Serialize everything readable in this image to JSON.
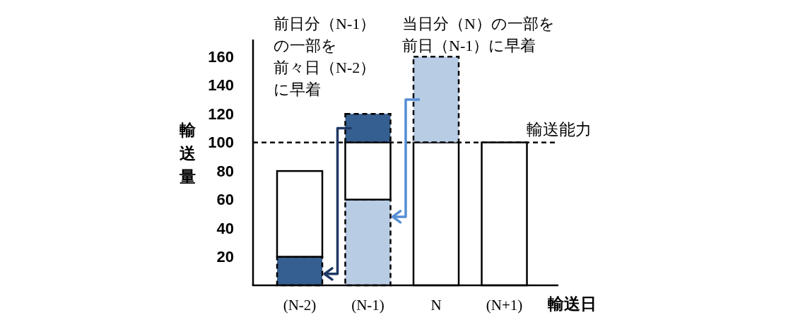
{
  "chart_data": {
    "type": "bar",
    "stacked": true,
    "categories": [
      "(N-2)",
      "(N-1)",
      "N",
      "(N+1)"
    ],
    "series": [
      {
        "colors": [
          "#365f91",
          "#b8cce4",
          null,
          null
        ],
        "values": [
          20,
          60,
          null,
          null
        ],
        "line_style": "dashed"
      },
      {
        "color": "#ffffff",
        "values": [
          60,
          40,
          100,
          100
        ]
      },
      {
        "colors": [
          null,
          "#365f91",
          "#b8cce4",
          null
        ],
        "values": [
          null,
          20,
          60,
          null
        ],
        "line_style": "dashed"
      }
    ],
    "ylim": [
      0,
      172
    ],
    "yticks": [
      20,
      40,
      60,
      80,
      100,
      120,
      140,
      160
    ],
    "xlabel": "輸送日",
    "ylabel": "輸送量",
    "ref_lines": [
      {
        "axis": "y",
        "value": 100,
        "label": "輸送能力",
        "color": "#000000",
        "line_style": "dashed"
      }
    ],
    "annotations": [
      "前日分（N-1）の一部を前々日（N-2）に早着",
      "当日分（N）の一部を前日（N-1）に早着"
    ]
  }
}
